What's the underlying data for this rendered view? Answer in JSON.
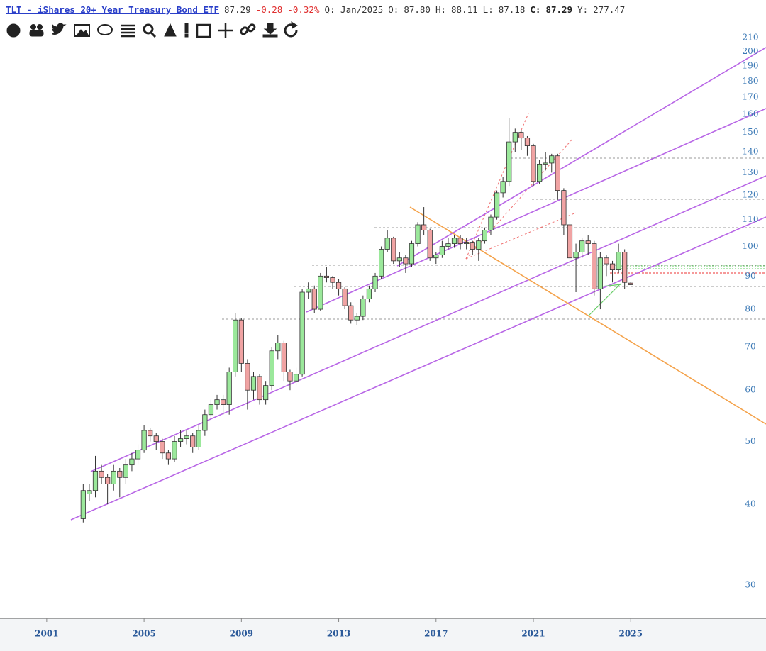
{
  "header": {
    "title": "TLT - iShares 20+ Year Treasury Bond ETF",
    "last": "87.29",
    "change": "-0.28",
    "change_pct": "-0.32%",
    "period": "Q: Jan/2025",
    "open_label": "O:",
    "open": "87.80",
    "high_label": "H:",
    "high": "88.11",
    "low_label": "L:",
    "low": "87.18",
    "close_label": "C:",
    "close": "87.29",
    "year_label": "Y:",
    "year": "277.47"
  },
  "chart_data": {
    "type": "candlestick",
    "log_scale": true,
    "up_color": "#9be89b",
    "down_color": "#f0a3a3",
    "xlim": [
      1999.08,
      2030.56
    ],
    "xticks": [
      2001,
      2005,
      2009,
      2013,
      2017,
      2021,
      2025
    ],
    "ylim": [
      26.8,
      222.6
    ],
    "yticks": [
      30,
      40,
      50,
      60,
      70,
      80,
      90,
      100,
      110,
      120,
      130,
      140,
      150,
      160,
      170,
      180,
      190,
      200,
      210
    ],
    "x": [
      2002.5,
      2002.75,
      2003,
      2003.25,
      2003.5,
      2003.75,
      2004,
      2004.25,
      2004.5,
      2004.75,
      2005,
      2005.25,
      2005.5,
      2005.75,
      2006,
      2006.25,
      2006.5,
      2006.75,
      2007,
      2007.25,
      2007.5,
      2007.75,
      2008,
      2008.25,
      2008.5,
      2008.75,
      2009,
      2009.25,
      2009.5,
      2009.75,
      2010,
      2010.25,
      2010.5,
      2010.75,
      2011,
      2011.25,
      2011.5,
      2011.75,
      2012,
      2012.25,
      2012.5,
      2012.75,
      2013,
      2013.25,
      2013.5,
      2013.75,
      2014,
      2014.25,
      2014.5,
      2014.75,
      2015,
      2015.25,
      2015.5,
      2015.75,
      2016,
      2016.25,
      2016.5,
      2016.75,
      2017,
      2017.25,
      2017.5,
      2017.75,
      2018,
      2018.25,
      2018.5,
      2018.75,
      2019,
      2019.25,
      2019.5,
      2019.75,
      2020,
      2020.25,
      2020.5,
      2020.75,
      2021,
      2021.25,
      2021.5,
      2021.75,
      2022,
      2022.25,
      2022.5,
      2022.75,
      2023,
      2023.25,
      2023.5,
      2023.75,
      2024,
      2024.25,
      2024.5,
      2024.75,
      2025
    ],
    "open": [
      38,
      41.5,
      42,
      45,
      44,
      43,
      45,
      44,
      46,
      47,
      48.5,
      52,
      51,
      50,
      48,
      47,
      50,
      50.5,
      51,
      49,
      52,
      55,
      57,
      58,
      57,
      64,
      77,
      66,
      60,
      63,
      58,
      61,
      69,
      71,
      64,
      62,
      63.5,
      85,
      86,
      80,
      90,
      89.5,
      88,
      86,
      81,
      77,
      78,
      83,
      86,
      90,
      99,
      103,
      95,
      96,
      94,
      101,
      108,
      106,
      96,
      97,
      100,
      101,
      103,
      101,
      101.5,
      99,
      102,
      106,
      111,
      121,
      126,
      145,
      150,
      147,
      143,
      126,
      134,
      134.5,
      138,
      122,
      108,
      96,
      98,
      102,
      101,
      86,
      96,
      94,
      92,
      98,
      87.8
    ],
    "high": [
      43,
      43,
      47.5,
      46,
      44.5,
      46,
      45.5,
      47,
      48,
      49.5,
      53,
      52.5,
      51.5,
      50.5,
      48.5,
      51,
      52,
      52,
      51.5,
      53,
      56,
      58,
      59,
      59,
      65,
      79,
      77.5,
      67,
      64,
      63.5,
      62,
      70,
      73,
      71.5,
      64.5,
      65,
      86,
      88,
      87,
      91,
      93,
      90,
      89,
      86.5,
      82,
      79,
      84,
      87,
      91,
      100,
      106,
      103.5,
      98,
      97,
      102,
      109,
      115,
      106.5,
      98,
      102,
      103,
      104,
      104,
      103,
      102,
      103,
      107,
      112,
      122,
      128,
      158,
      152,
      151,
      148,
      144,
      136,
      140,
      139,
      139,
      123,
      109,
      101,
      103,
      104,
      102,
      98,
      97,
      95,
      101,
      99,
      88.11
    ],
    "low": [
      37.5,
      40.5,
      41,
      43,
      40,
      42,
      41,
      43,
      45,
      46,
      48,
      50,
      48.5,
      47,
      46,
      46.5,
      49,
      49.5,
      48,
      48.5,
      51,
      54,
      56,
      55,
      55,
      63,
      64,
      56,
      58,
      57,
      57,
      60,
      67,
      62,
      60,
      61,
      63,
      83,
      79,
      79.5,
      88,
      86,
      84,
      80,
      76,
      75.5,
      77,
      82,
      85,
      89,
      98,
      94,
      93,
      91,
      93,
      100,
      104,
      95,
      94,
      96,
      99,
      99.5,
      99,
      99,
      97,
      95,
      101,
      104,
      110,
      119,
      124,
      140,
      141,
      138,
      124,
      125,
      131,
      130,
      118,
      104,
      93,
      85,
      96,
      97,
      84,
      80,
      90,
      88,
      91,
      86,
      87.18
    ],
    "close": [
      42,
      42,
      45,
      44,
      43,
      45,
      44,
      46,
      47,
      48.5,
      52,
      51,
      50,
      48,
      47,
      50,
      50.5,
      51,
      49,
      52,
      55,
      57,
      58,
      57,
      64,
      77,
      66,
      60,
      63,
      58,
      61,
      69,
      71,
      64,
      62,
      63.5,
      85,
      86,
      80,
      90,
      89.5,
      88,
      86,
      81,
      77,
      78,
      83,
      86,
      90,
      99,
      103,
      95,
      96,
      94,
      101,
      108,
      106,
      96,
      97,
      100,
      101,
      103,
      101,
      101.5,
      99,
      102,
      106,
      111,
      121,
      126,
      145,
      150,
      147,
      143,
      126,
      134,
      134.5,
      138,
      122,
      108,
      96,
      98,
      102,
      101,
      86,
      96,
      94,
      92,
      98,
      88,
      87.29
    ]
  }
}
